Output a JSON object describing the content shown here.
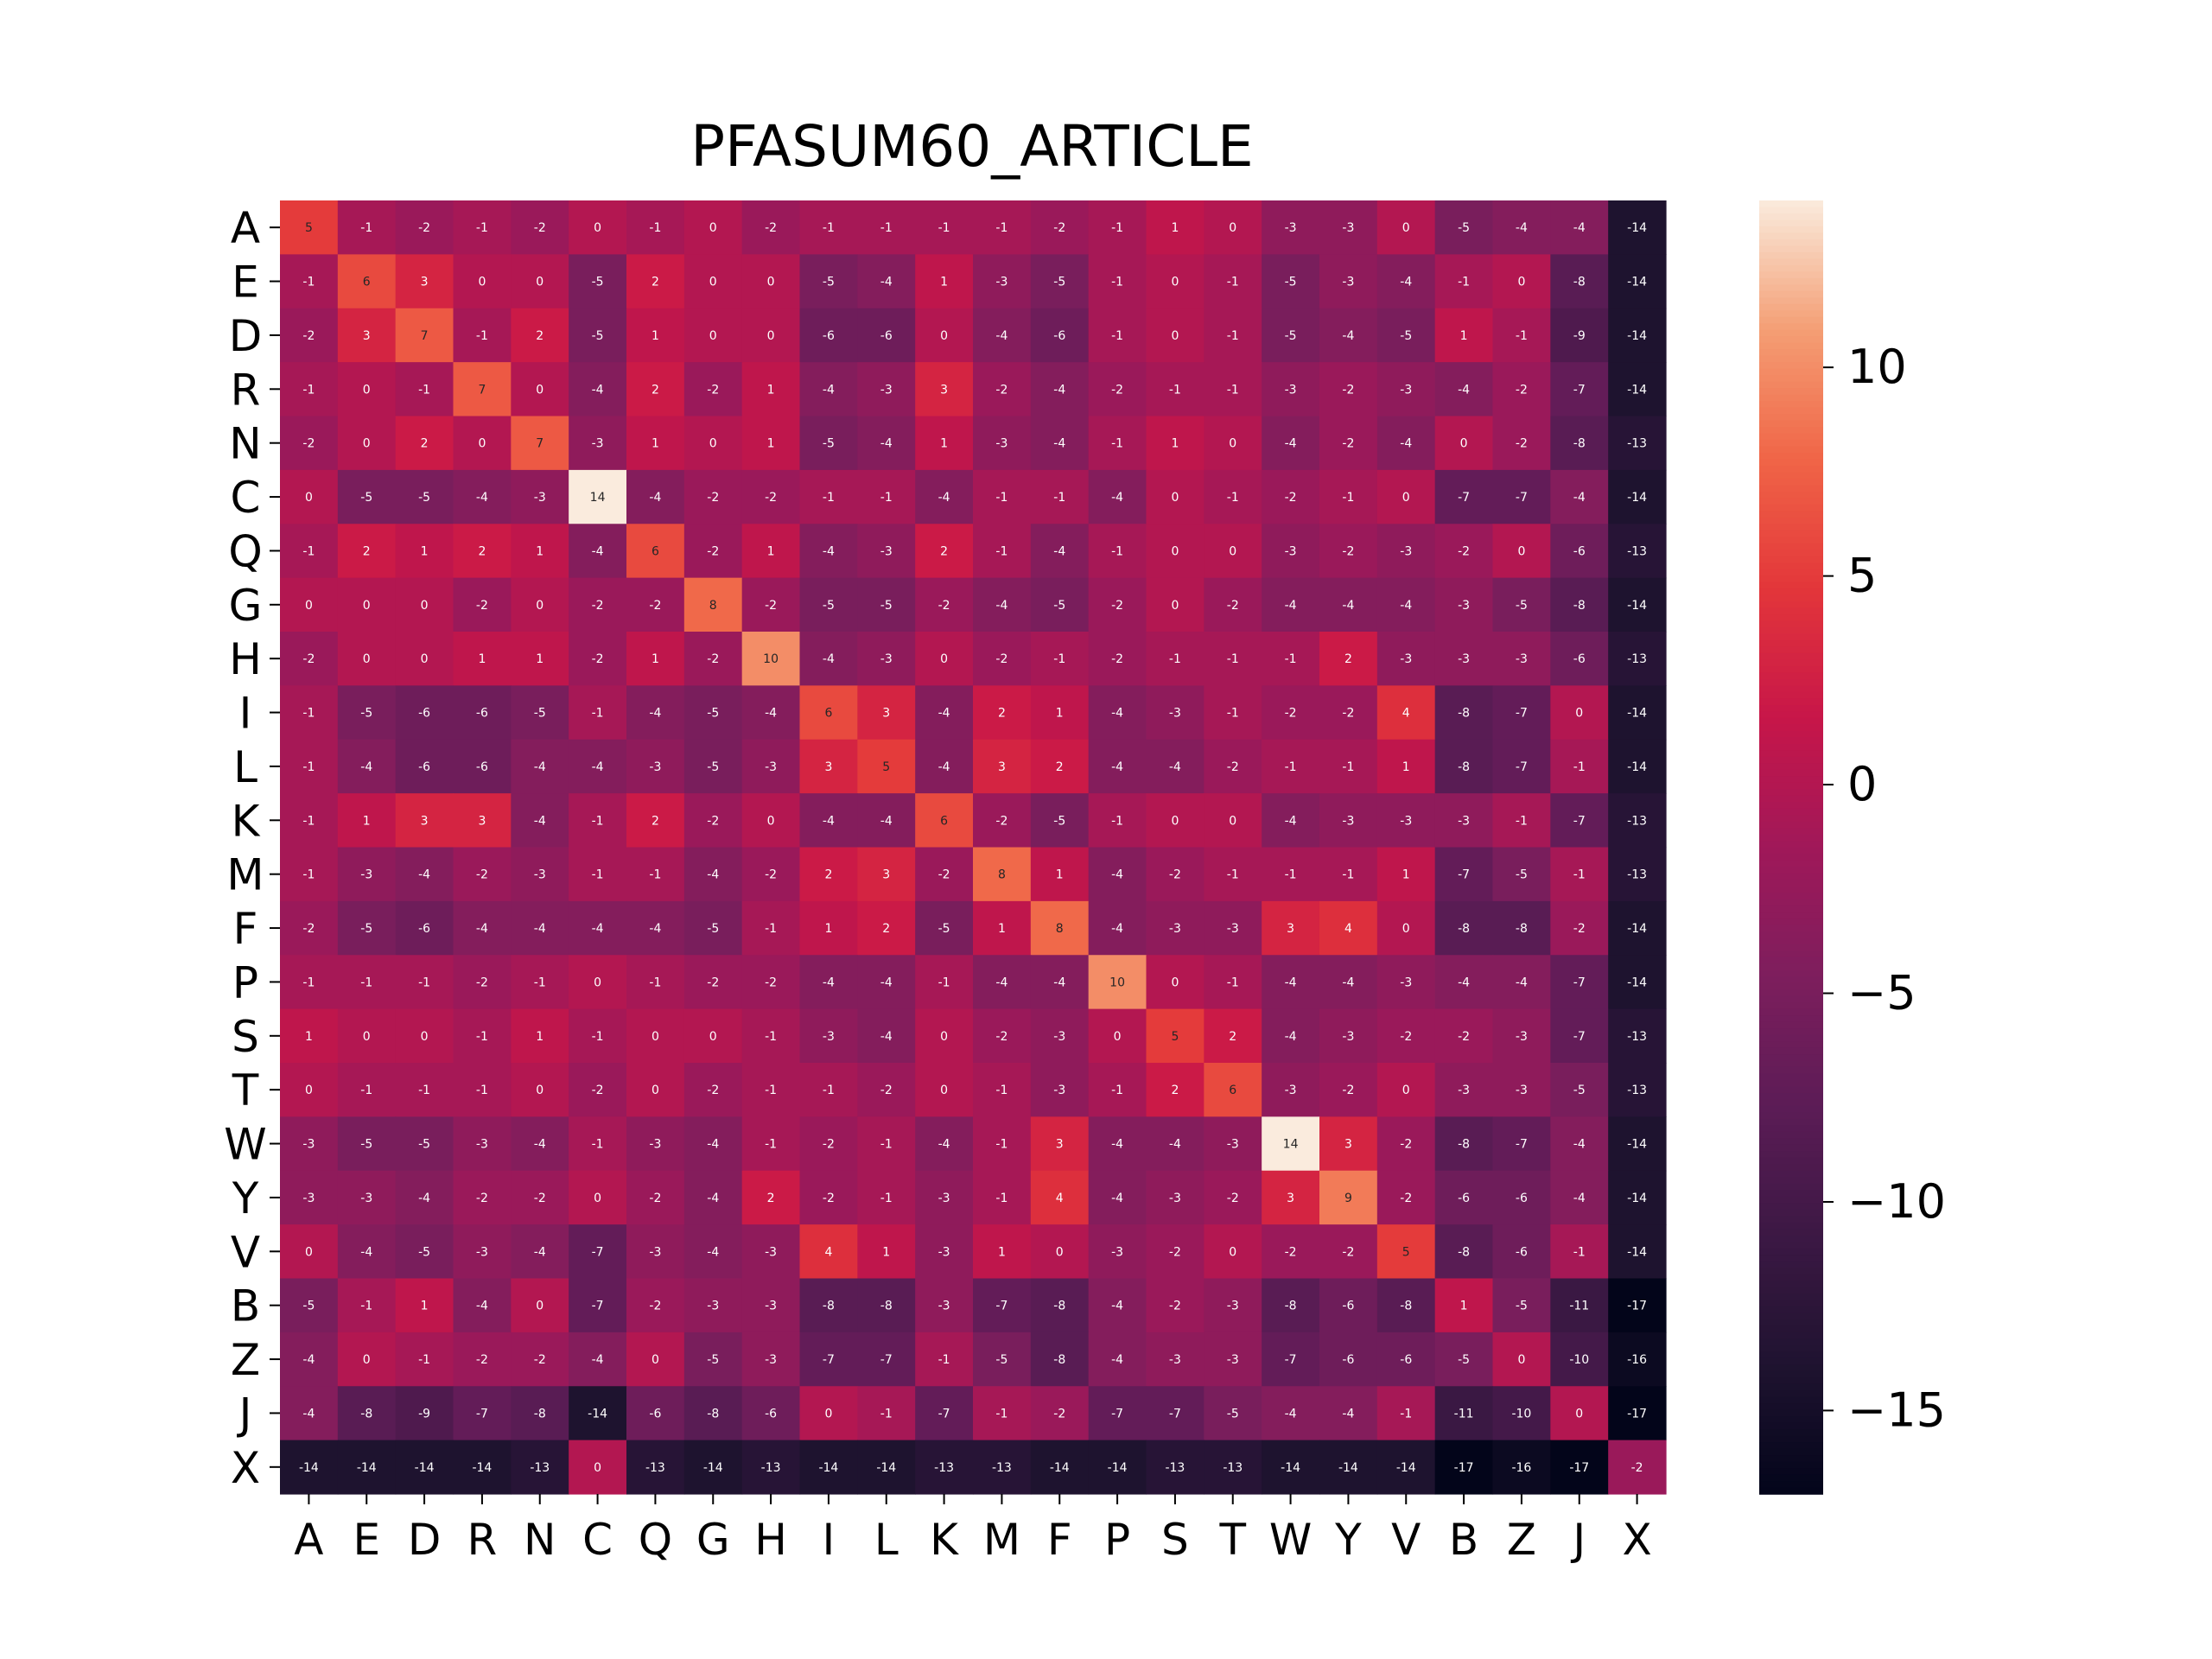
{
  "chart_data": {
    "type": "heatmap",
    "title": "PFASUM60_ARTICLE",
    "xlabel": "",
    "ylabel": "",
    "x_labels": [
      "A",
      "E",
      "D",
      "R",
      "N",
      "C",
      "Q",
      "G",
      "H",
      "I",
      "L",
      "K",
      "M",
      "F",
      "P",
      "S",
      "T",
      "W",
      "Y",
      "V",
      "B",
      "Z",
      "J",
      "X"
    ],
    "y_labels": [
      "A",
      "E",
      "D",
      "R",
      "N",
      "C",
      "Q",
      "G",
      "H",
      "I",
      "L",
      "K",
      "M",
      "F",
      "P",
      "S",
      "T",
      "W",
      "Y",
      "V",
      "B",
      "Z",
      "J",
      "X"
    ],
    "matrix": [
      [
        5,
        -1,
        -2,
        -1,
        -2,
        0,
        -1,
        0,
        -2,
        -1,
        -1,
        -1,
        -1,
        -2,
        -1,
        1,
        0,
        -3,
        -3,
        0,
        -5,
        -4,
        -4,
        -14
      ],
      [
        -1,
        6,
        3,
        0,
        0,
        -5,
        2,
        0,
        0,
        -5,
        -4,
        1,
        -3,
        -5,
        -1,
        0,
        -1,
        -5,
        -3,
        -4,
        -1,
        0,
        -8,
        -14
      ],
      [
        -2,
        3,
        7,
        -1,
        2,
        -5,
        1,
        0,
        0,
        -6,
        -6,
        0,
        -4,
        -6,
        -1,
        0,
        -1,
        -5,
        -4,
        -5,
        1,
        -1,
        -9,
        -14
      ],
      [
        -1,
        0,
        -1,
        7,
        0,
        -4,
        2,
        -2,
        1,
        -4,
        -3,
        3,
        -2,
        -4,
        -2,
        -1,
        -1,
        -3,
        -2,
        -3,
        -4,
        -2,
        -7,
        -14
      ],
      [
        -2,
        0,
        2,
        0,
        7,
        -3,
        1,
        0,
        1,
        -5,
        -4,
        1,
        -3,
        -4,
        -1,
        1,
        0,
        -4,
        -2,
        -4,
        0,
        -2,
        -8,
        -13
      ],
      [
        0,
        -5,
        -5,
        -4,
        -3,
        14,
        -4,
        -2,
        -2,
        -1,
        -1,
        -4,
        -1,
        -1,
        -4,
        0,
        -1,
        -2,
        -1,
        0,
        -7,
        -7,
        -4,
        -14
      ],
      [
        -1,
        2,
        1,
        2,
        1,
        -4,
        6,
        -2,
        1,
        -4,
        -3,
        2,
        -1,
        -4,
        -1,
        0,
        0,
        -3,
        -2,
        -3,
        -2,
        0,
        -6,
        -13
      ],
      [
        0,
        0,
        0,
        -2,
        0,
        -2,
        -2,
        8,
        -2,
        -5,
        -5,
        -2,
        -4,
        -5,
        -2,
        0,
        -2,
        -4,
        -4,
        -4,
        -3,
        -5,
        -8,
        -14
      ],
      [
        -2,
        0,
        0,
        1,
        1,
        -2,
        1,
        -2,
        10,
        -4,
        -3,
        0,
        -2,
        -1,
        -2,
        -1,
        -1,
        -1,
        2,
        -3,
        -3,
        -3,
        -6,
        -13
      ],
      [
        -1,
        -5,
        -6,
        -6,
        -5,
        -1,
        -4,
        -5,
        -4,
        6,
        3,
        -4,
        2,
        1,
        -4,
        -3,
        -1,
        -2,
        -2,
        4,
        -8,
        -7,
        0,
        -14
      ],
      [
        -1,
        -4,
        -6,
        -6,
        -4,
        -4,
        -3,
        -5,
        -3,
        3,
        5,
        -4,
        3,
        2,
        -4,
        -4,
        -2,
        -1,
        -1,
        1,
        -8,
        -7,
        -1,
        -14
      ],
      [
        -1,
        1,
        3,
        3,
        -4,
        -1,
        2,
        -2,
        0,
        -4,
        -4,
        6,
        -2,
        -5,
        -1,
        0,
        0,
        -4,
        -3,
        -3,
        -3,
        -1,
        -7,
        -13
      ],
      [
        -1,
        -3,
        -4,
        -2,
        -3,
        -1,
        -1,
        -4,
        -2,
        2,
        3,
        -2,
        8,
        1,
        -4,
        -2,
        -1,
        -1,
        -1,
        1,
        -7,
        -5,
        -1,
        -13
      ],
      [
        -2,
        -5,
        -6,
        -4,
        -4,
        -4,
        -4,
        -5,
        -1,
        1,
        2,
        -5,
        1,
        8,
        -4,
        -3,
        -3,
        3,
        4,
        0,
        -8,
        -8,
        -2,
        -14
      ],
      [
        -1,
        -1,
        -1,
        -2,
        -1,
        0,
        -1,
        -2,
        -2,
        -4,
        -4,
        -1,
        -4,
        -4,
        10,
        0,
        -1,
        -4,
        -4,
        -3,
        -4,
        -4,
        -7,
        -14
      ],
      [
        1,
        0,
        0,
        -1,
        1,
        -1,
        0,
        0,
        -1,
        -3,
        -4,
        0,
        -2,
        -3,
        0,
        5,
        2,
        -4,
        -3,
        -2,
        -2,
        -3,
        -7,
        -13
      ],
      [
        0,
        -1,
        -1,
        -1,
        0,
        -2,
        0,
        -2,
        -1,
        -1,
        -2,
        0,
        -1,
        -3,
        -1,
        2,
        6,
        -3,
        -2,
        0,
        -3,
        -3,
        -5,
        -13
      ],
      [
        -3,
        -5,
        -5,
        -3,
        -4,
        -1,
        -3,
        -4,
        -1,
        -2,
        -1,
        -4,
        -1,
        3,
        -4,
        -4,
        -3,
        14,
        3,
        -2,
        -8,
        -7,
        -4,
        -14
      ],
      [
        -3,
        -3,
        -4,
        -2,
        -2,
        0,
        -2,
        -4,
        2,
        -2,
        -1,
        -3,
        -1,
        4,
        -4,
        -3,
        -2,
        3,
        9,
        -2,
        -6,
        -6,
        -4,
        -14
      ],
      [
        0,
        -4,
        -5,
        -3,
        -4,
        -7,
        -3,
        -4,
        -3,
        4,
        1,
        -3,
        1,
        0,
        -3,
        -2,
        0,
        -2,
        -2,
        5,
        -8,
        -6,
        -1,
        -14
      ],
      [
        -5,
        -1,
        1,
        -4,
        0,
        -7,
        -2,
        -3,
        -3,
        -8,
        -8,
        -3,
        -7,
        -8,
        -4,
        -2,
        -3,
        -8,
        -6,
        -8,
        1,
        -5,
        -11,
        -17
      ],
      [
        -4,
        0,
        -1,
        -2,
        -2,
        -4,
        0,
        -5,
        -3,
        -7,
        -7,
        -1,
        -5,
        -8,
        -4,
        -3,
        -3,
        -7,
        -6,
        -6,
        -5,
        0,
        -10,
        -16
      ],
      [
        -4,
        -8,
        -9,
        -7,
        -8,
        -14,
        -6,
        -8,
        -6,
        0,
        -1,
        -7,
        -1,
        -2,
        -7,
        -7,
        -5,
        -4,
        -4,
        -1,
        -11,
        -10,
        0,
        -17
      ],
      [
        -14,
        -14,
        -14,
        -14,
        -13,
        0,
        -13,
        -14,
        -13,
        -14,
        -14,
        -13,
        -13,
        -14,
        -14,
        -13,
        -13,
        -14,
        -14,
        -14,
        -17,
        -16,
        -17,
        -2
      ]
    ],
    "vmin": -17,
    "vmax": 14,
    "colormap": "rocket",
    "colorbar_ticks": [
      10,
      5,
      0,
      -5,
      -10,
      -15
    ],
    "colorbar_tick_labels": [
      "10",
      "5",
      "−5",
      "−10",
      "−15"
    ],
    "colorbar_tick_labels_full": [
      "10",
      "5",
      "0",
      "−5",
      "−10",
      "−15"
    ],
    "annotations": true,
    "grid": false
  }
}
